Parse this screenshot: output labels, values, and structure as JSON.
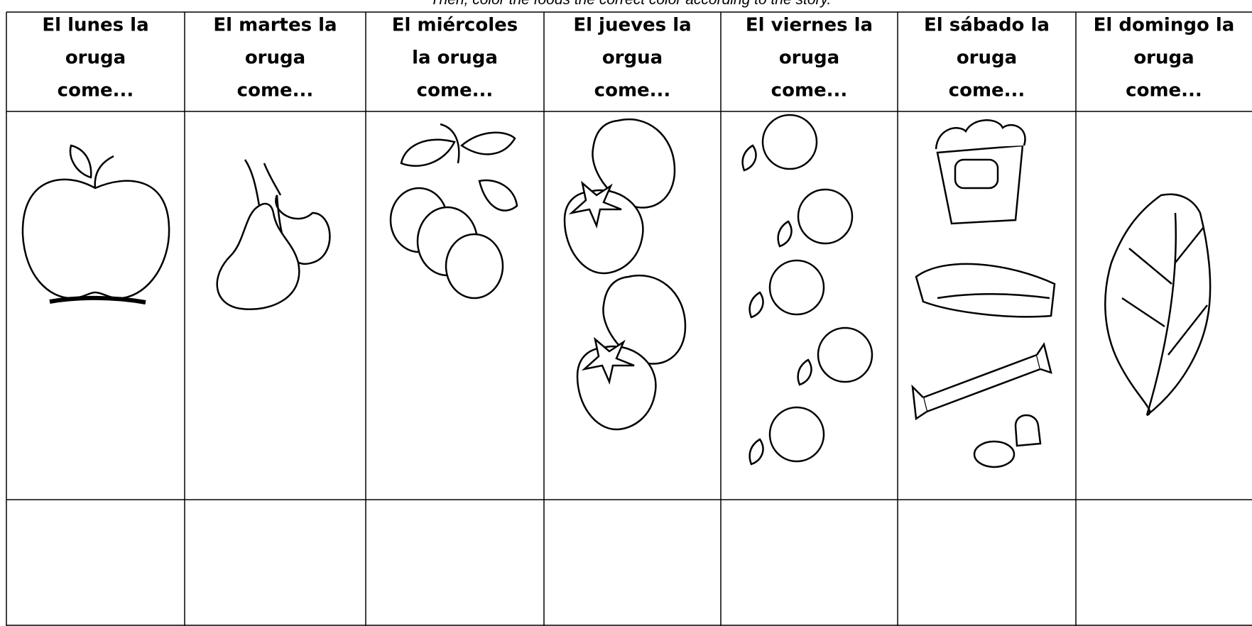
{
  "instruction": "Then, color the foods the correct color according to the story.",
  "columns": [
    {
      "header": [
        "El lunes la",
        "oruga",
        "come..."
      ]
    },
    {
      "header": [
        "El martes la",
        "oruga",
        "come..."
      ]
    },
    {
      "header": [
        "El miércoles",
        "la oruga",
        "come..."
      ]
    },
    {
      "header": [
        "El jueves la",
        "orgua",
        "come..."
      ]
    },
    {
      "header": [
        "El viernes la",
        "oruga",
        "come..."
      ]
    },
    {
      "header": [
        "El sábado la",
        "oruga",
        "come..."
      ]
    },
    {
      "header": [
        "El domingo la",
        "oruga",
        "come..."
      ]
    }
  ]
}
